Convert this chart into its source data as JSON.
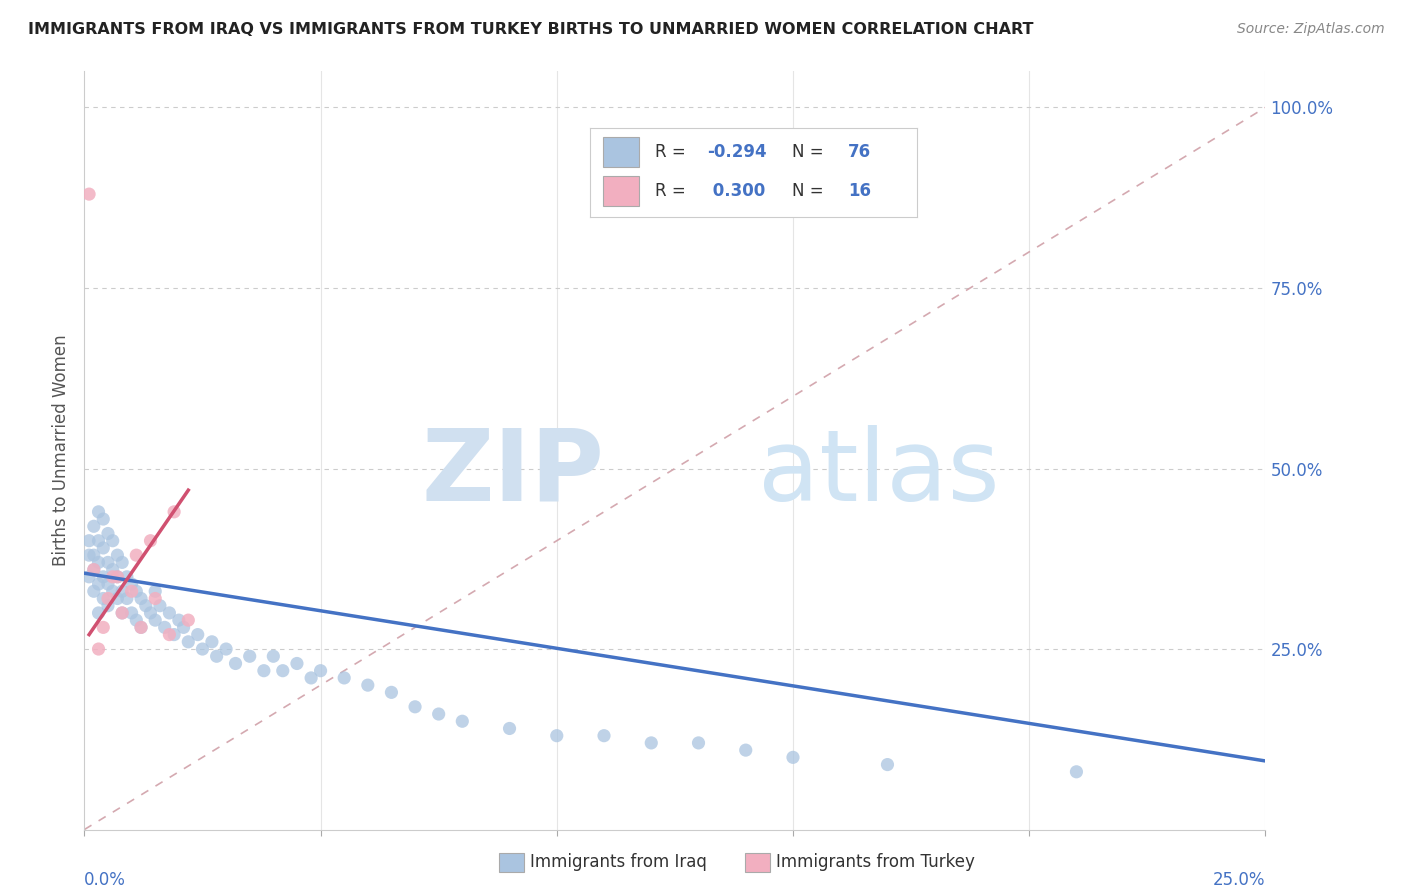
{
  "title": "IMMIGRANTS FROM IRAQ VS IMMIGRANTS FROM TURKEY BIRTHS TO UNMARRIED WOMEN CORRELATION CHART",
  "source": "Source: ZipAtlas.com",
  "ylabel": "Births to Unmarried Women",
  "iraq_color": "#aac4e0",
  "turkey_color": "#f2afc0",
  "iraq_line_color": "#4472c4",
  "turkey_line_color": "#d05070",
  "ref_line_color": "#d0a0a8",
  "background_color": "#ffffff",
  "xlim": [
    0.0,
    0.25
  ],
  "ylim": [
    0.0,
    1.05
  ],
  "watermark_zip_color": "#d0e0f0",
  "watermark_atlas_color": "#d0e4f4",
  "iraq_x": [
    0.001,
    0.001,
    0.001,
    0.002,
    0.002,
    0.002,
    0.002,
    0.003,
    0.003,
    0.003,
    0.003,
    0.003,
    0.004,
    0.004,
    0.004,
    0.004,
    0.005,
    0.005,
    0.005,
    0.005,
    0.006,
    0.006,
    0.006,
    0.007,
    0.007,
    0.007,
    0.008,
    0.008,
    0.008,
    0.009,
    0.009,
    0.01,
    0.01,
    0.011,
    0.011,
    0.012,
    0.012,
    0.013,
    0.014,
    0.015,
    0.015,
    0.016,
    0.017,
    0.018,
    0.019,
    0.02,
    0.021,
    0.022,
    0.024,
    0.025,
    0.027,
    0.028,
    0.03,
    0.032,
    0.035,
    0.038,
    0.04,
    0.042,
    0.045,
    0.048,
    0.05,
    0.055,
    0.06,
    0.065,
    0.07,
    0.075,
    0.08,
    0.09,
    0.1,
    0.11,
    0.12,
    0.13,
    0.14,
    0.15,
    0.17,
    0.21
  ],
  "iraq_y": [
    0.38,
    0.4,
    0.35,
    0.42,
    0.38,
    0.36,
    0.33,
    0.44,
    0.4,
    0.37,
    0.34,
    0.3,
    0.43,
    0.39,
    0.35,
    0.32,
    0.41,
    0.37,
    0.34,
    0.31,
    0.4,
    0.36,
    0.33,
    0.38,
    0.35,
    0.32,
    0.37,
    0.33,
    0.3,
    0.35,
    0.32,
    0.34,
    0.3,
    0.33,
    0.29,
    0.32,
    0.28,
    0.31,
    0.3,
    0.33,
    0.29,
    0.31,
    0.28,
    0.3,
    0.27,
    0.29,
    0.28,
    0.26,
    0.27,
    0.25,
    0.26,
    0.24,
    0.25,
    0.23,
    0.24,
    0.22,
    0.24,
    0.22,
    0.23,
    0.21,
    0.22,
    0.21,
    0.2,
    0.19,
    0.17,
    0.16,
    0.15,
    0.14,
    0.13,
    0.13,
    0.12,
    0.12,
    0.11,
    0.1,
    0.09,
    0.08
  ],
  "turkey_x": [
    0.001,
    0.002,
    0.003,
    0.004,
    0.005,
    0.006,
    0.007,
    0.008,
    0.01,
    0.011,
    0.012,
    0.014,
    0.015,
    0.018,
    0.019,
    0.022
  ],
  "turkey_y": [
    0.88,
    0.36,
    0.25,
    0.28,
    0.32,
    0.35,
    0.35,
    0.3,
    0.33,
    0.38,
    0.28,
    0.4,
    0.32,
    0.27,
    0.44,
    0.29
  ],
  "iraq_trend_x0": 0.0,
  "iraq_trend_x1": 0.25,
  "iraq_trend_y0": 0.355,
  "iraq_trend_y1": 0.095,
  "turkey_trend_x0": 0.001,
  "turkey_trend_x1": 0.022,
  "turkey_trend_y0": 0.27,
  "turkey_trend_y1": 0.47,
  "ref_line_x0": 0.0,
  "ref_line_x1": 0.25,
  "ref_line_y0": 0.0,
  "ref_line_y1": 1.0
}
